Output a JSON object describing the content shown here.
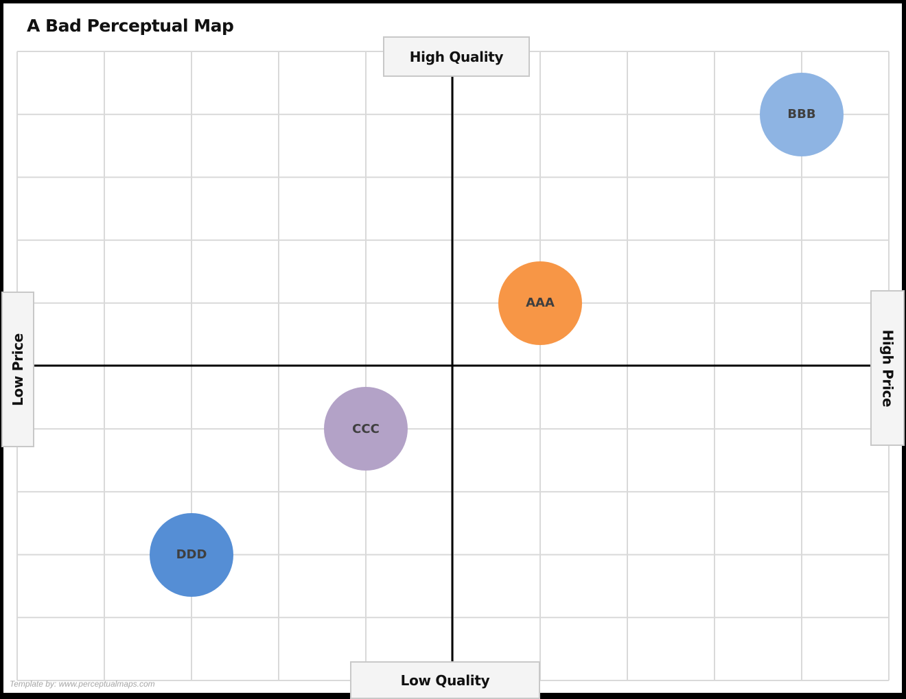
{
  "chart_data": {
    "type": "scatter",
    "title": "A Bad Perceptual Map",
    "xlabel": "Price",
    "ylabel": "Quality",
    "x_axis": {
      "low_label": "Low Price",
      "high_label": "High Price",
      "range": [
        -5,
        5
      ]
    },
    "y_axis": {
      "low_label": "Low Quality",
      "high_label": "High Quality",
      "range": [
        -5,
        5
      ]
    },
    "grid": true,
    "legend": "none",
    "points": [
      {
        "label": "AAA",
        "x": 1,
        "y": 1,
        "color": "#f79646"
      },
      {
        "label": "BBB",
        "x": 4,
        "y": 4,
        "color": "#8eb4e3"
      },
      {
        "label": "CCC",
        "x": -1,
        "y": -1,
        "color": "#b3a2c7"
      },
      {
        "label": "DDD",
        "x": -3,
        "y": -3,
        "color": "#558ed5"
      }
    ]
  },
  "page": {
    "title": "A Bad Perceptual Map",
    "credit": "Template by: www.perceptualmaps.com"
  },
  "axes": {
    "top": "High Quality",
    "bottom": "Low Quality",
    "left": "Low Price",
    "right": "High Price"
  },
  "colors": {
    "grid": "#d9d9d9",
    "axis": "#000000",
    "frame": "#000000",
    "label_box_bg": "#f4f4f4",
    "label_box_border": "#c8c8c8"
  }
}
